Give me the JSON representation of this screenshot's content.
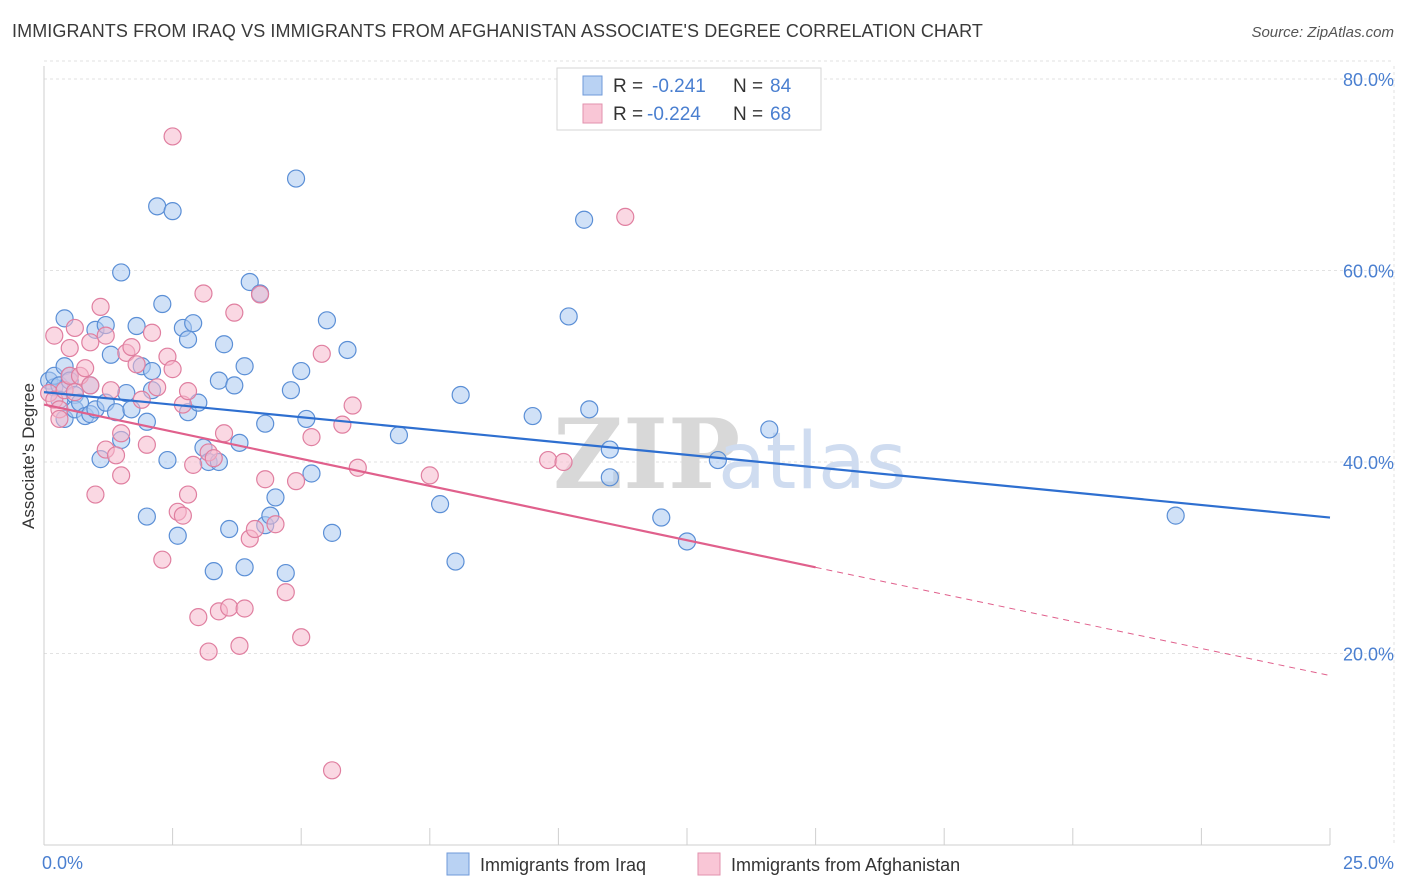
{
  "header": {
    "title": "IMMIGRANTS FROM IRAQ VS IMMIGRANTS FROM AFGHANISTAN ASSOCIATE'S DEGREE CORRELATION CHART",
    "source": "Source: ZipAtlas.com"
  },
  "watermark": {
    "zip": "ZIP",
    "atlas": "atlas"
  },
  "legend_box": {
    "rows": [
      {
        "r_label": "R = ",
        "r_value": "-0.241",
        "n_label": "N = ",
        "n_value": "84"
      },
      {
        "r_label": "R = ",
        "r_value": "-0.224",
        "n_label": "N = ",
        "n_value": "68"
      }
    ]
  },
  "bottom_legend": [
    {
      "label": "Immigrants from Iraq"
    },
    {
      "label": "Immigrants from Afghanistan"
    }
  ],
  "colors": {
    "iraq_fill": "#a9c8f0",
    "iraq_stroke": "#5b8fd6",
    "iraq_line": "#2e6fd0",
    "afgh_fill": "#f5b8cc",
    "afgh_stroke": "#e07fa0",
    "afgh_line": "#e0608c",
    "grid": "#e2e2e2",
    "tick_text": "#4a7fd0"
  },
  "chart_data": {
    "type": "scatter",
    "title": "IMMIGRANTS FROM IRAQ VS IMMIGRANTS FROM AFGHANISTAN ASSOCIATE'S DEGREE CORRELATION CHART",
    "xlabel": "",
    "ylabel": "Associate's Degree",
    "xlim": [
      0,
      25
    ],
    "ylim": [
      0,
      84
    ],
    "x_tick_labels": [
      "0.0%",
      "25.0%"
    ],
    "y_ticks": [
      20,
      40,
      60,
      80
    ],
    "y_tick_labels": [
      "20.0%",
      "40.0%",
      "60.0%",
      "80.0%"
    ],
    "grid": true,
    "legend_position": "top-center",
    "series": [
      {
        "name": "Immigrants from Iraq",
        "r": -0.241,
        "n": 84,
        "trend": {
          "x": [
            0.0,
            25.0
          ],
          "y": [
            47.3,
            34.2
          ]
        },
        "points": [
          [
            0.1,
            48.5
          ],
          [
            0.2,
            47.8
          ],
          [
            0.2,
            49.0
          ],
          [
            0.3,
            48.0
          ],
          [
            0.3,
            46.5
          ],
          [
            0.4,
            50.0
          ],
          [
            0.4,
            44.5
          ],
          [
            0.4,
            55.0
          ],
          [
            0.5,
            49.0
          ],
          [
            0.5,
            48.5
          ],
          [
            0.6,
            47.0
          ],
          [
            0.6,
            45.5
          ],
          [
            0.7,
            46.2
          ],
          [
            0.8,
            44.8
          ],
          [
            0.9,
            45.0
          ],
          [
            0.9,
            48.0
          ],
          [
            1.0,
            53.8
          ],
          [
            1.0,
            45.5
          ],
          [
            1.1,
            40.3
          ],
          [
            1.2,
            46.2
          ],
          [
            1.2,
            54.3
          ],
          [
            1.3,
            51.2
          ],
          [
            1.4,
            45.2
          ],
          [
            1.5,
            42.3
          ],
          [
            1.5,
            59.8
          ],
          [
            1.6,
            47.2
          ],
          [
            1.7,
            45.5
          ],
          [
            1.8,
            54.2
          ],
          [
            1.9,
            50.0
          ],
          [
            2.0,
            34.3
          ],
          [
            2.0,
            44.2
          ],
          [
            2.1,
            47.5
          ],
          [
            2.1,
            49.5
          ],
          [
            2.2,
            66.7
          ],
          [
            2.3,
            56.5
          ],
          [
            2.4,
            40.2
          ],
          [
            2.5,
            66.2
          ],
          [
            2.6,
            32.3
          ],
          [
            2.7,
            54.0
          ],
          [
            2.8,
            52.8
          ],
          [
            2.8,
            45.2
          ],
          [
            2.9,
            54.5
          ],
          [
            3.0,
            46.2
          ],
          [
            3.1,
            41.5
          ],
          [
            3.2,
            40.0
          ],
          [
            3.3,
            28.6
          ],
          [
            3.4,
            48.5
          ],
          [
            3.4,
            40.0
          ],
          [
            3.5,
            52.3
          ],
          [
            3.6,
            33.0
          ],
          [
            3.7,
            48.0
          ],
          [
            3.8,
            42.0
          ],
          [
            3.9,
            29.0
          ],
          [
            3.9,
            50.0
          ],
          [
            4.0,
            58.8
          ],
          [
            4.2,
            57.6
          ],
          [
            4.3,
            44.0
          ],
          [
            4.3,
            33.4
          ],
          [
            4.4,
            34.4
          ],
          [
            4.5,
            36.3
          ],
          [
            4.7,
            28.4
          ],
          [
            4.8,
            47.5
          ],
          [
            4.9,
            69.6
          ],
          [
            5.0,
            49.5
          ],
          [
            5.1,
            44.5
          ],
          [
            5.2,
            38.8
          ],
          [
            5.5,
            54.8
          ],
          [
            5.6,
            32.6
          ],
          [
            5.9,
            51.7
          ],
          [
            6.9,
            42.8
          ],
          [
            7.7,
            35.6
          ],
          [
            8.0,
            29.6
          ],
          [
            8.1,
            47.0
          ],
          [
            9.5,
            44.8
          ],
          [
            10.2,
            55.2
          ],
          [
            10.5,
            65.3
          ],
          [
            10.6,
            45.5
          ],
          [
            11.0,
            41.3
          ],
          [
            11.0,
            38.4
          ],
          [
            12.0,
            34.2
          ],
          [
            12.5,
            31.7
          ],
          [
            13.1,
            40.2
          ],
          [
            14.1,
            43.4
          ],
          [
            22.0,
            34.4
          ]
        ]
      },
      {
        "name": "Immigrants from Afghanistan",
        "r": -0.224,
        "n": 68,
        "trend": {
          "x": [
            0.0,
            15.0
          ],
          "y": [
            46.0,
            29.0
          ]
        },
        "trend_extrapolated": {
          "x": [
            15.0,
            25.0
          ],
          "y": [
            29.0,
            17.7
          ]
        },
        "points": [
          [
            0.1,
            47.2
          ],
          [
            0.2,
            46.5
          ],
          [
            0.2,
            53.2
          ],
          [
            0.3,
            45.5
          ],
          [
            0.3,
            44.5
          ],
          [
            0.4,
            47.5
          ],
          [
            0.5,
            49.0
          ],
          [
            0.5,
            51.9
          ],
          [
            0.6,
            54.0
          ],
          [
            0.6,
            47.3
          ],
          [
            0.7,
            49.0
          ],
          [
            0.8,
            49.8
          ],
          [
            0.9,
            48.0
          ],
          [
            0.9,
            52.5
          ],
          [
            1.0,
            36.6
          ],
          [
            1.1,
            56.2
          ],
          [
            1.2,
            53.2
          ],
          [
            1.2,
            41.3
          ],
          [
            1.3,
            47.5
          ],
          [
            1.4,
            40.7
          ],
          [
            1.5,
            43.0
          ],
          [
            1.5,
            38.6
          ],
          [
            1.6,
            51.4
          ],
          [
            1.7,
            52.0
          ],
          [
            1.8,
            50.2
          ],
          [
            1.9,
            46.5
          ],
          [
            2.0,
            41.8
          ],
          [
            2.1,
            53.5
          ],
          [
            2.2,
            47.8
          ],
          [
            2.3,
            29.8
          ],
          [
            2.4,
            51.0
          ],
          [
            2.5,
            74.0
          ],
          [
            2.5,
            49.7
          ],
          [
            2.6,
            34.8
          ],
          [
            2.7,
            34.4
          ],
          [
            2.7,
            46.0
          ],
          [
            2.8,
            36.6
          ],
          [
            2.8,
            47.4
          ],
          [
            2.9,
            39.7
          ],
          [
            3.0,
            23.8
          ],
          [
            3.1,
            57.6
          ],
          [
            3.2,
            41.0
          ],
          [
            3.2,
            20.2
          ],
          [
            3.3,
            40.4
          ],
          [
            3.4,
            24.4
          ],
          [
            3.5,
            43.0
          ],
          [
            3.6,
            24.8
          ],
          [
            3.7,
            55.6
          ],
          [
            3.8,
            20.8
          ],
          [
            3.9,
            24.7
          ],
          [
            4.0,
            32.0
          ],
          [
            4.1,
            33.0
          ],
          [
            4.2,
            57.5
          ],
          [
            4.3,
            38.2
          ],
          [
            4.5,
            33.5
          ],
          [
            4.7,
            26.4
          ],
          [
            4.9,
            38.0
          ],
          [
            5.0,
            21.7
          ],
          [
            5.2,
            42.6
          ],
          [
            5.4,
            51.3
          ],
          [
            5.6,
            7.8
          ],
          [
            5.8,
            43.9
          ],
          [
            6.0,
            45.9
          ],
          [
            6.1,
            39.4
          ],
          [
            7.5,
            38.6
          ],
          [
            9.8,
            40.2
          ],
          [
            10.1,
            40.0
          ],
          [
            11.3,
            65.6
          ]
        ]
      }
    ]
  }
}
